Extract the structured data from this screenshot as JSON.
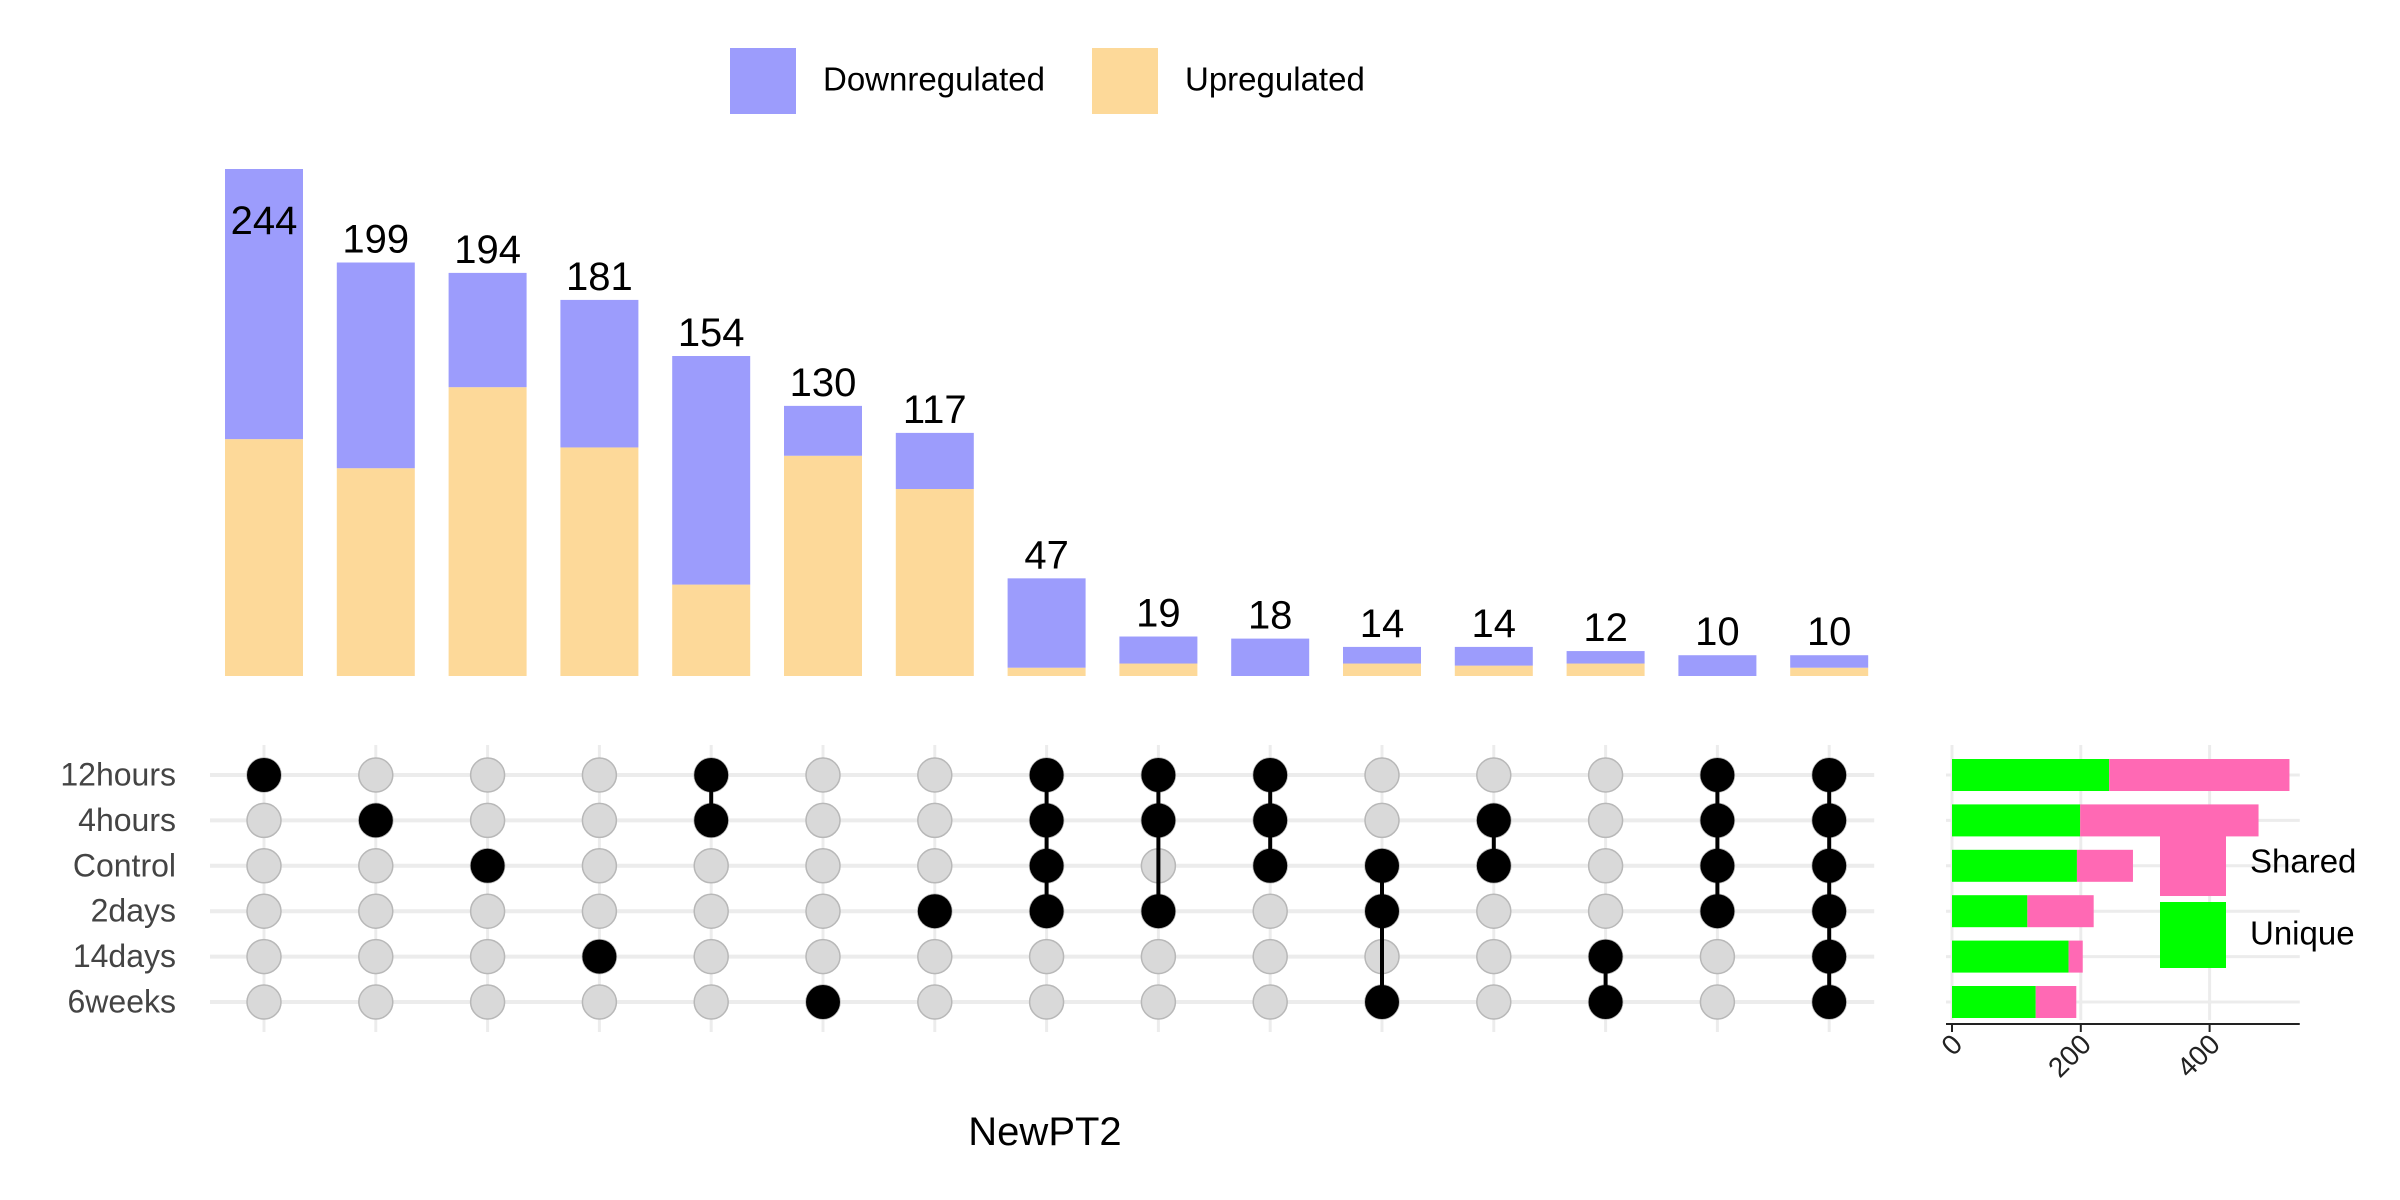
{
  "chart_data": {
    "type": "upset",
    "xlabel": "NewPT2",
    "colors": {
      "Downregulated": "#9c9cfc",
      "Upregulated": "#fdd999",
      "Shared": "#ff69b4",
      "Unique": "#00ff00",
      "dot_active": "#000000",
      "dot_inactive": "#d9d9d9"
    },
    "legend_top": {
      "position": "top-center",
      "entries": [
        "Downregulated",
        "Upregulated"
      ]
    },
    "legend_side": {
      "position": "right",
      "entries": [
        "Shared",
        "Unique"
      ]
    },
    "sets": [
      "12hours",
      "4hours",
      "Control",
      "2days",
      "14days",
      "6weeks"
    ],
    "intersections": [
      {
        "label": "244",
        "total": 244,
        "down": 130,
        "up": 114,
        "members": [
          "12hours"
        ]
      },
      {
        "label": "199",
        "total": 199,
        "down": 99,
        "up": 100,
        "members": [
          "4hours"
        ]
      },
      {
        "label": "194",
        "total": 194,
        "down": 55,
        "up": 139,
        "members": [
          "Control"
        ]
      },
      {
        "label": "181",
        "total": 181,
        "down": 71,
        "up": 110,
        "members": [
          "14days"
        ]
      },
      {
        "label": "154",
        "total": 154,
        "down": 110,
        "up": 44,
        "members": [
          "12hours",
          "4hours"
        ]
      },
      {
        "label": "130",
        "total": 130,
        "down": 24,
        "up": 106,
        "members": [
          "6weeks"
        ]
      },
      {
        "label": "117",
        "total": 117,
        "down": 27,
        "up": 90,
        "members": [
          "2days"
        ]
      },
      {
        "label": "47",
        "total": 47,
        "down": 43,
        "up": 4,
        "members": [
          "12hours",
          "4hours",
          "Control",
          "2days"
        ]
      },
      {
        "label": "19",
        "total": 19,
        "down": 13,
        "up": 6,
        "members": [
          "12hours",
          "4hours",
          "2days"
        ]
      },
      {
        "label": "18",
        "total": 18,
        "down": 18,
        "up": 0,
        "members": [
          "12hours",
          "4hours",
          "Control"
        ]
      },
      {
        "label": "14",
        "total": 14,
        "down": 8,
        "up": 6,
        "members": [
          "Control",
          "2days",
          "6weeks"
        ]
      },
      {
        "label": "14",
        "total": 14,
        "down": 9,
        "up": 5,
        "members": [
          "4hours",
          "Control"
        ]
      },
      {
        "label": "12",
        "total": 12,
        "down": 6,
        "up": 6,
        "members": [
          "14days",
          "6weeks"
        ]
      },
      {
        "label": "10",
        "total": 10,
        "down": 10,
        "up": 0,
        "members": [
          "12hours",
          "4hours",
          "Control",
          "2days"
        ]
      },
      {
        "label": "10",
        "total": 10,
        "down": 6,
        "up": 4,
        "members": [
          "12hours",
          "4hours",
          "Control",
          "2days",
          "14days",
          "6weeks"
        ]
      }
    ],
    "set_sizes": {
      "xlim": [
        0,
        540
      ],
      "ticks": [
        "0",
        "200",
        "400"
      ],
      "tick_values": [
        0,
        200,
        400
      ],
      "rows": [
        {
          "set": "12hours",
          "unique": 244,
          "shared": 280
        },
        {
          "set": "4hours",
          "unique": 199,
          "shared": 277
        },
        {
          "set": "Control",
          "unique": 194,
          "shared": 87
        },
        {
          "set": "2days",
          "unique": 117,
          "shared": 103
        },
        {
          "set": "14days",
          "unique": 181,
          "shared": 22
        },
        {
          "set": "6weeks",
          "unique": 130,
          "shared": 63
        }
      ]
    }
  }
}
